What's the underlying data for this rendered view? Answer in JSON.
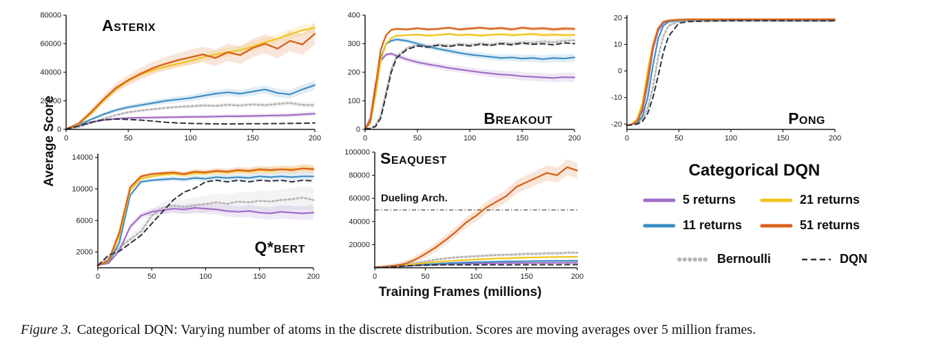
{
  "labels": {
    "ylabel": "Average Score",
    "xlabel": "Training Frames (millions)"
  },
  "caption": {
    "prefix": "Figure 3.",
    "text": "Categorical DQN: Varying number of atoms in the discrete distribution. Scores are moving averages over 5 million frames."
  },
  "legend": {
    "title": "Categorical DQN",
    "items": [
      {
        "key": "5 returns",
        "label": "5 returns"
      },
      {
        "key": "21 returns",
        "label": "21 returns"
      },
      {
        "key": "11 returns",
        "label": "11 returns"
      },
      {
        "key": "51 returns",
        "label": "51 returns"
      },
      {
        "key": "Bernoulli",
        "label": "Bernoulli"
      },
      {
        "key": "DQN",
        "label": "DQN"
      }
    ]
  },
  "series_styles": {
    "5 returns": {
      "color": "#a16dc6",
      "kind": "solid",
      "dash": null,
      "width": 2.2
    },
    "11 returns": {
      "color": "#3d8ec4",
      "kind": "solid",
      "dash": null,
      "width": 2.2
    },
    "21 returns": {
      "color": "#f0c41c",
      "kind": "solid",
      "dash": null,
      "width": 2.2
    },
    "51 returns": {
      "color": "#d9641d",
      "kind": "solid",
      "dash": null,
      "width": 2.4
    },
    "Bernoulli": {
      "color": "#b6b6b6",
      "kind": "dotted",
      "dash": "2.5 3.5",
      "width": 2.8
    },
    "DQN": {
      "color": "#2e2e3e",
      "kind": "dashed",
      "dash": "7 5",
      "width": 2.0
    }
  },
  "chart_data": [
    {
      "type": "line",
      "title": "Asterix",
      "xlim": [
        0,
        200
      ],
      "ylim": [
        0,
        80000
      ],
      "xticks": [
        0,
        50,
        100,
        150,
        200
      ],
      "yticks": [
        0,
        20000,
        40000,
        60000,
        80000
      ],
      "x": [
        0,
        10,
        20,
        30,
        40,
        50,
        60,
        70,
        80,
        90,
        100,
        110,
        120,
        130,
        140,
        150,
        160,
        170,
        180,
        190,
        200
      ],
      "series": [
        {
          "name": "Bernoulli",
          "band": 1800,
          "values": [
            200,
            1800,
            4500,
            7500,
            10000,
            12000,
            13200,
            14200,
            15000,
            15800,
            16200,
            16800,
            16500,
            17200,
            16800,
            17500,
            17000,
            17800,
            18500,
            17200,
            17000
          ]
        },
        {
          "name": "5 returns",
          "band": 1600,
          "values": [
            200,
            2500,
            5000,
            6500,
            7500,
            8000,
            8200,
            8300,
            8500,
            8600,
            8800,
            8800,
            9000,
            9200,
            9200,
            9400,
            9600,
            9800,
            10000,
            10500,
            11000
          ]
        },
        {
          "name": "11 returns",
          "band": 3200,
          "values": [
            300,
            3000,
            7000,
            10500,
            13500,
            15500,
            17000,
            18500,
            20000,
            21000,
            22000,
            23500,
            25000,
            26000,
            25000,
            26500,
            28000,
            25500,
            24500,
            28000,
            31000
          ]
        },
        {
          "name": "21 returns",
          "band": 3800,
          "values": [
            300,
            3500,
            11000,
            20000,
            28000,
            34000,
            38500,
            41500,
            44000,
            46000,
            48000,
            50500,
            52500,
            54000,
            55500,
            58000,
            61000,
            63500,
            66500,
            69500,
            71000
          ]
        },
        {
          "name": "51 returns",
          "band": 7500,
          "values": [
            300,
            4000,
            12000,
            21000,
            29000,
            34500,
            39000,
            43000,
            46000,
            48500,
            50500,
            52500,
            50000,
            54000,
            52000,
            57000,
            60000,
            56500,
            62000,
            59500,
            67000
          ]
        },
        {
          "name": "DQN",
          "band": 0,
          "values": [
            300,
            2200,
            5000,
            6800,
            7200,
            7000,
            6500,
            5800,
            5000,
            4500,
            4200,
            4000,
            3900,
            3800,
            3900,
            4000,
            4000,
            4100,
            4200,
            4300,
            4500
          ]
        }
      ]
    },
    {
      "type": "line",
      "title": "Breakout",
      "xlim": [
        0,
        200
      ],
      "ylim": [
        0,
        400
      ],
      "xticks": [
        0,
        50,
        100,
        150,
        200
      ],
      "yticks": [
        0,
        100,
        200,
        300,
        400
      ],
      "x": [
        0,
        5,
        10,
        15,
        20,
        25,
        30,
        40,
        50,
        60,
        70,
        80,
        90,
        100,
        110,
        120,
        130,
        140,
        150,
        160,
        170,
        180,
        190,
        200
      ],
      "series": [
        {
          "name": "Bernoulli",
          "band": 12,
          "values": [
            0,
            3,
            15,
            50,
            130,
            210,
            255,
            285,
            295,
            290,
            297,
            293,
            299,
            295,
            301,
            297,
            303,
            300,
            305,
            303,
            308,
            305,
            310,
            312
          ]
        },
        {
          "name": "5 returns",
          "band": 16,
          "values": [
            0,
            40,
            160,
            240,
            262,
            265,
            258,
            245,
            235,
            228,
            222,
            215,
            210,
            205,
            200,
            196,
            192,
            190,
            186,
            184,
            182,
            180,
            183,
            182
          ]
        },
        {
          "name": "11 returns",
          "band": 14,
          "values": [
            0,
            25,
            130,
            250,
            300,
            310,
            315,
            310,
            300,
            290,
            282,
            275,
            268,
            262,
            258,
            254,
            250,
            252,
            248,
            250,
            246,
            250,
            248,
            252
          ]
        },
        {
          "name": "21 returns",
          "band": 8,
          "values": [
            0,
            20,
            120,
            240,
            300,
            320,
            328,
            330,
            332,
            328,
            331,
            334,
            330,
            332,
            328,
            331,
            333,
            330,
            332,
            334,
            330,
            332,
            330,
            331
          ]
        },
        {
          "name": "51 returns",
          "band": 8,
          "values": [
            0,
            30,
            150,
            280,
            330,
            348,
            352,
            350,
            354,
            350,
            352,
            356,
            350,
            353,
            356,
            352,
            355,
            350,
            356,
            352,
            354,
            350,
            353,
            352
          ]
        },
        {
          "name": "DQN",
          "band": 0,
          "values": [
            2,
            3,
            10,
            40,
            120,
            200,
            250,
            280,
            292,
            288,
            295,
            290,
            296,
            292,
            298,
            294,
            300,
            296,
            302,
            298,
            300,
            296,
            303,
            300
          ]
        }
      ]
    },
    {
      "type": "line",
      "title": "Pong",
      "xlim": [
        0,
        200
      ],
      "ylim": [
        -22,
        21
      ],
      "xticks": [
        0,
        50,
        100,
        150,
        200
      ],
      "yticks": [
        -20,
        -10,
        0,
        10,
        20
      ],
      "x": [
        0,
        5,
        10,
        15,
        20,
        25,
        30,
        35,
        40,
        50,
        60,
        80,
        100,
        120,
        140,
        160,
        180,
        200
      ],
      "series": [
        {
          "name": "Bernoulli",
          "band": 0.8,
          "values": [
            -20.5,
            -20,
            -19.8,
            -18,
            -14,
            -6,
            5,
            13,
            17,
            18.7,
            19,
            19,
            19,
            19,
            19,
            19,
            19,
            19
          ]
        },
        {
          "name": "5 returns",
          "band": 0.6,
          "values": [
            -20.5,
            -20,
            -19,
            -15,
            -5,
            8,
            15,
            18,
            18.8,
            19,
            19.1,
            19.1,
            19.1,
            19.1,
            19.1,
            19.1,
            19.1,
            19.1
          ]
        },
        {
          "name": "11 returns",
          "band": 0.6,
          "values": [
            -20.5,
            -20,
            -19.5,
            -17,
            -10,
            2,
            12,
            17,
            18.5,
            19,
            19.1,
            19.1,
            19.1,
            19.1,
            19.1,
            19.1,
            19.1,
            19.1
          ]
        },
        {
          "name": "21 returns",
          "band": 0.6,
          "values": [
            -20.5,
            -20,
            -18,
            -12,
            0,
            10,
            16,
            18.5,
            19,
            19.2,
            19.3,
            19.3,
            19.3,
            19.3,
            19.3,
            19.3,
            19.3,
            19.3
          ]
        },
        {
          "name": "51 returns",
          "band": 0.6,
          "values": [
            -20.5,
            -20,
            -19,
            -14,
            -3,
            9,
            16,
            18.5,
            19,
            19.3,
            19.4,
            19.4,
            19.4,
            19.4,
            19.4,
            19.4,
            19.4,
            19.4
          ]
        },
        {
          "name": "DQN",
          "band": 0,
          "values": [
            -20.5,
            -20.3,
            -20,
            -19,
            -16,
            -10,
            -2,
            7,
            13,
            18,
            18.6,
            18.8,
            18.9,
            18.9,
            18.9,
            18.9,
            18.9,
            18.9
          ]
        }
      ]
    },
    {
      "type": "line",
      "title": "Q*bert",
      "xlim": [
        0,
        200
      ],
      "ylim": [
        0,
        14500
      ],
      "xticks": [
        0,
        50,
        100,
        150,
        200
      ],
      "yticks": [
        2000,
        6000,
        10000,
        14000
      ],
      "x": [
        0,
        10,
        20,
        30,
        40,
        50,
        60,
        70,
        80,
        90,
        100,
        110,
        120,
        130,
        140,
        150,
        160,
        170,
        180,
        190,
        200
      ],
      "series": [
        {
          "name": "Bernoulli",
          "band": 1500,
          "values": [
            300,
            1200,
            2600,
            3600,
            4600,
            6600,
            7600,
            7900,
            7700,
            7900,
            8100,
            8300,
            8100,
            8400,
            8300,
            8500,
            8400,
            8600,
            8700,
            8900,
            8600
          ]
        },
        {
          "name": "5 returns",
          "band": 900,
          "values": [
            300,
            600,
            2200,
            5200,
            6600,
            7100,
            7300,
            7500,
            7400,
            7600,
            7500,
            7400,
            7200,
            7100,
            7200,
            7000,
            6900,
            7100,
            7000,
            6900,
            7000
          ]
        },
        {
          "name": "11 returns",
          "band": 500,
          "values": [
            300,
            700,
            3200,
            9200,
            10900,
            11100,
            11200,
            11300,
            11200,
            11400,
            11300,
            11500,
            11400,
            11500,
            11400,
            11600,
            11500,
            11600,
            11500,
            11600,
            11600
          ]
        },
        {
          "name": "21 returns",
          "band": 500,
          "values": [
            300,
            800,
            4000,
            9800,
            11300,
            11600,
            11800,
            11900,
            11800,
            12000,
            12000,
            12200,
            12100,
            12300,
            12200,
            12400,
            12300,
            12500,
            12500,
            12600,
            12600
          ]
        },
        {
          "name": "51 returns",
          "band": 500,
          "values": [
            300,
            900,
            4500,
            10200,
            11600,
            11900,
            12000,
            12100,
            11900,
            12200,
            12100,
            12300,
            12200,
            12400,
            12300,
            12500,
            12400,
            12500,
            12400,
            12600,
            12500
          ]
        },
        {
          "name": "DQN",
          "band": 0,
          "values": [
            300,
            1600,
            2100,
            3100,
            4100,
            5600,
            7100,
            8600,
            9600,
            10100,
            10900,
            11100,
            10900,
            11100,
            10900,
            11100,
            11000,
            11100,
            10900,
            11100,
            11000
          ]
        }
      ]
    },
    {
      "type": "line",
      "title": "Seaquest",
      "xlim": [
        0,
        200
      ],
      "ylim": [
        0,
        100000
      ],
      "xticks": [
        0,
        50,
        100,
        150,
        200
      ],
      "yticks": [
        20000,
        40000,
        60000,
        80000,
        100000
      ],
      "x": [
        0,
        10,
        20,
        30,
        40,
        50,
        60,
        70,
        80,
        90,
        100,
        110,
        120,
        130,
        140,
        150,
        160,
        170,
        180,
        190,
        200
      ],
      "reflines": [
        {
          "y": 50000
        }
      ],
      "annotations": [
        {
          "text": "Dueling Arch.",
          "x": 6,
          "y": 57500
        }
      ],
      "series": [
        {
          "name": "Bernoulli",
          "band": 2000,
          "values": [
            300,
            900,
            1800,
            2800,
            4000,
            5500,
            7000,
            8000,
            9000,
            9500,
            10000,
            10500,
            11000,
            11200,
            11500,
            12000,
            12000,
            12500,
            12500,
            13000,
            13000
          ]
        },
        {
          "name": "5 returns",
          "band": 600,
          "values": [
            300,
            500,
            900,
            1400,
            1900,
            2300,
            2700,
            3000,
            3300,
            3500,
            3700,
            3800,
            3900,
            4000,
            4100,
            4100,
            4200,
            4200,
            4300,
            4300,
            4400
          ]
        },
        {
          "name": "11 returns",
          "band": 700,
          "values": [
            300,
            600,
            1100,
            1700,
            2300,
            2900,
            3400,
            3900,
            4300,
            4600,
            4900,
            5100,
            5300,
            5500,
            5600,
            5700,
            5800,
            5900,
            6000,
            6000,
            6100
          ]
        },
        {
          "name": "21 returns",
          "band": 900,
          "values": [
            300,
            700,
            1300,
            2200,
            3200,
            4200,
            5000,
            5600,
            6200,
            6700,
            7200,
            7600,
            8000,
            8100,
            8500,
            8800,
            9000,
            9200,
            9300,
            9500,
            9500
          ]
        },
        {
          "name": "51 returns",
          "band": 7000,
          "values": [
            400,
            900,
            1800,
            3500,
            7000,
            12000,
            17500,
            24000,
            31000,
            39000,
            45000,
            52000,
            57000,
            62000,
            70000,
            74000,
            78000,
            82000,
            80000,
            87000,
            84000
          ]
        },
        {
          "name": "DQN",
          "band": 0,
          "values": [
            200,
            400,
            900,
            1600,
            2100,
            2300,
            2400,
            2500,
            2500,
            2600,
            2500,
            2600,
            2600,
            2500,
            2600,
            2600,
            2600,
            2700,
            2600,
            2700,
            2700
          ]
        }
      ]
    }
  ]
}
